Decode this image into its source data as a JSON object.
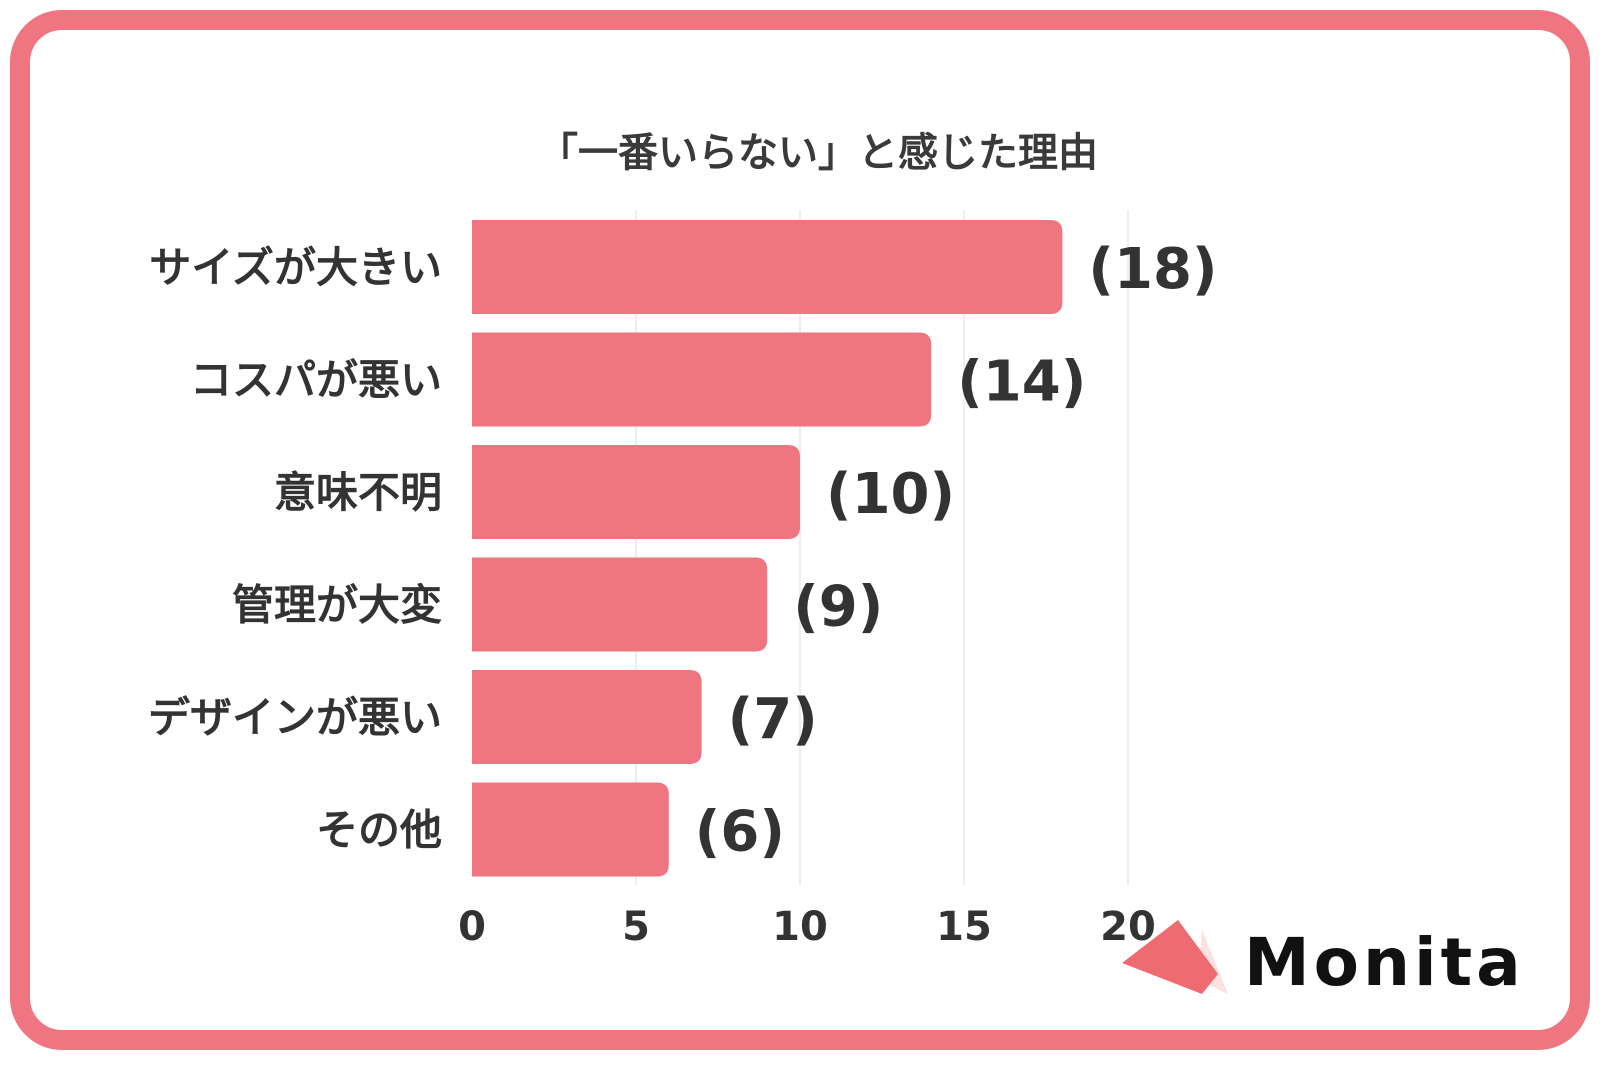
{
  "chart_data": {
    "type": "bar",
    "orientation": "horizontal",
    "title": "「一番いらない」と感じた理由",
    "categories": [
      "サイズが大きい",
      "コスパが悪い",
      "意味不明",
      "管理が大変",
      "デザインが悪い",
      "その他"
    ],
    "values": [
      18,
      14,
      10,
      9,
      7,
      6
    ],
    "value_labels": [
      "(18)",
      "(14)",
      "(10)",
      "(9)",
      "(7)",
      "(6)"
    ],
    "xlim": [
      0,
      20
    ],
    "ticks": [
      "0",
      "5",
      "10",
      "15",
      "20"
    ],
    "xlabel": "",
    "ylabel": "",
    "grid": true,
    "bar_color": "#ef7580"
  },
  "brand": {
    "logo_text": "Monita",
    "accent_color": "#ef7580"
  }
}
